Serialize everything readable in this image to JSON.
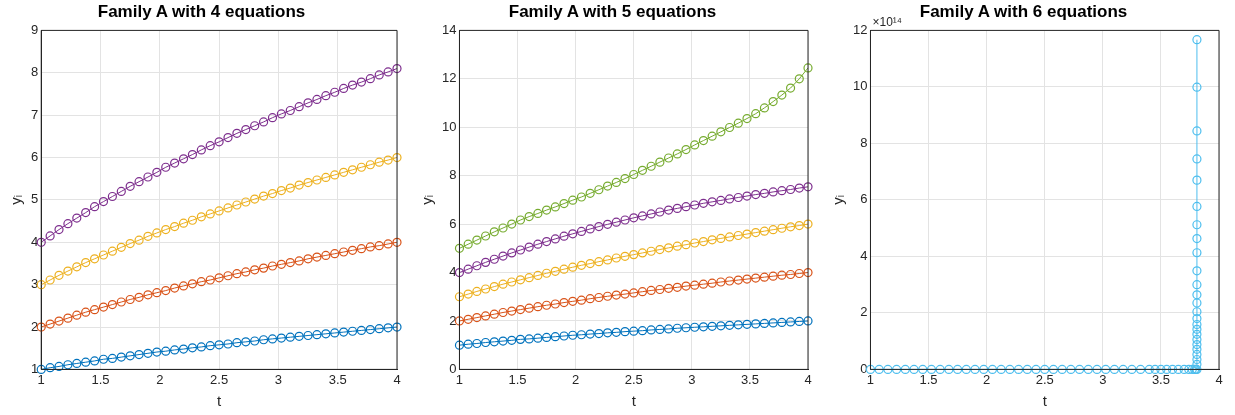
{
  "chart_data": [
    {
      "type": "line",
      "title": "Family A with 4 equations",
      "xlabel": "t",
      "ylabel": "yᵢ",
      "xlim": [
        1,
        4
      ],
      "xticks": [
        1,
        1.5,
        2,
        2.5,
        3,
        3.5,
        4
      ],
      "ylim": [
        1,
        9
      ],
      "yticks": [
        1,
        2,
        3,
        4,
        5,
        6,
        7,
        8,
        9
      ],
      "grid": true,
      "marker": "circle",
      "line_style": "solid",
      "x": [
        1,
        1.075,
        1.15,
        1.225,
        1.3,
        1.375,
        1.45,
        1.525,
        1.6,
        1.675,
        1.75,
        1.825,
        1.9,
        1.975,
        2.05,
        2.125,
        2.2,
        2.275,
        2.35,
        2.425,
        2.5,
        2.575,
        2.65,
        2.725,
        2.8,
        2.875,
        2.95,
        3.025,
        3.1,
        3.175,
        3.25,
        3.325,
        3.4,
        3.475,
        3.55,
        3.625,
        3.7,
        3.775,
        3.85,
        3.925,
        4
      ],
      "series": [
        {
          "color": "#0072bd",
          "values": [
            1.0,
            1.04,
            1.07,
            1.11,
            1.14,
            1.17,
            1.2,
            1.24,
            1.26,
            1.29,
            1.32,
            1.35,
            1.38,
            1.41,
            1.43,
            1.46,
            1.48,
            1.51,
            1.53,
            1.56,
            1.58,
            1.6,
            1.63,
            1.65,
            1.67,
            1.7,
            1.72,
            1.74,
            1.76,
            1.78,
            1.8,
            1.82,
            1.84,
            1.86,
            1.88,
            1.9,
            1.92,
            1.94,
            1.96,
            1.98,
            2.0
          ]
        },
        {
          "color": "#d95319",
          "values": [
            2.0,
            2.07,
            2.14,
            2.21,
            2.28,
            2.35,
            2.41,
            2.47,
            2.53,
            2.59,
            2.65,
            2.7,
            2.76,
            2.81,
            2.86,
            2.92,
            2.97,
            3.02,
            3.07,
            3.11,
            3.16,
            3.21,
            3.26,
            3.3,
            3.35,
            3.39,
            3.44,
            3.48,
            3.52,
            3.56,
            3.61,
            3.65,
            3.69,
            3.73,
            3.77,
            3.81,
            3.85,
            3.89,
            3.92,
            3.96,
            4.0
          ]
        },
        {
          "color": "#edb120",
          "values": [
            3.0,
            3.11,
            3.22,
            3.32,
            3.42,
            3.52,
            3.61,
            3.7,
            3.79,
            3.88,
            3.97,
            4.05,
            4.14,
            4.22,
            4.3,
            4.37,
            4.45,
            4.52,
            4.6,
            4.67,
            4.74,
            4.81,
            4.88,
            4.95,
            5.02,
            5.09,
            5.15,
            5.22,
            5.28,
            5.35,
            5.41,
            5.47,
            5.53,
            5.59,
            5.65,
            5.71,
            5.77,
            5.83,
            5.89,
            5.94,
            6.0
          ]
        },
        {
          "color": "#7e2f8e",
          "values": [
            4.0,
            4.15,
            4.3,
            4.44,
            4.57,
            4.7,
            4.84,
            4.96,
            5.08,
            5.2,
            5.32,
            5.43,
            5.54,
            5.65,
            5.77,
            5.87,
            5.97,
            6.07,
            6.18,
            6.28,
            6.37,
            6.47,
            6.57,
            6.66,
            6.75,
            6.84,
            6.94,
            7.03,
            7.11,
            7.2,
            7.29,
            7.37,
            7.46,
            7.54,
            7.63,
            7.71,
            7.78,
            7.86,
            7.95,
            8.02,
            8.1
          ]
        }
      ]
    },
    {
      "type": "line",
      "title": "Family A with 5 equations",
      "xlabel": "t",
      "ylabel": "yᵢ",
      "xlim": [
        1,
        4
      ],
      "xticks": [
        1,
        1.5,
        2,
        2.5,
        3,
        3.5,
        4
      ],
      "ylim": [
        0,
        14
      ],
      "yticks": [
        0,
        2,
        4,
        6,
        8,
        10,
        12,
        14
      ],
      "grid": true,
      "marker": "circle",
      "line_style": "solid",
      "x": [
        1,
        1.075,
        1.15,
        1.225,
        1.3,
        1.375,
        1.45,
        1.525,
        1.6,
        1.675,
        1.75,
        1.825,
        1.9,
        1.975,
        2.05,
        2.125,
        2.2,
        2.275,
        2.35,
        2.425,
        2.5,
        2.575,
        2.65,
        2.725,
        2.8,
        2.875,
        2.95,
        3.025,
        3.1,
        3.175,
        3.25,
        3.325,
        3.4,
        3.475,
        3.55,
        3.625,
        3.7,
        3.775,
        3.85,
        3.925,
        4
      ],
      "series": [
        {
          "color": "#0072bd",
          "values": [
            1.0,
            1.04,
            1.07,
            1.11,
            1.14,
            1.17,
            1.2,
            1.24,
            1.26,
            1.29,
            1.32,
            1.35,
            1.38,
            1.41,
            1.43,
            1.46,
            1.48,
            1.51,
            1.53,
            1.56,
            1.58,
            1.6,
            1.63,
            1.65,
            1.67,
            1.7,
            1.72,
            1.74,
            1.76,
            1.78,
            1.8,
            1.82,
            1.84,
            1.86,
            1.88,
            1.9,
            1.92,
            1.94,
            1.96,
            1.98,
            2.0
          ]
        },
        {
          "color": "#d95319",
          "values": [
            2.0,
            2.07,
            2.14,
            2.21,
            2.28,
            2.35,
            2.41,
            2.47,
            2.53,
            2.59,
            2.65,
            2.7,
            2.76,
            2.81,
            2.86,
            2.92,
            2.97,
            3.02,
            3.07,
            3.11,
            3.16,
            3.21,
            3.26,
            3.3,
            3.35,
            3.39,
            3.44,
            3.48,
            3.52,
            3.56,
            3.61,
            3.65,
            3.69,
            3.73,
            3.77,
            3.81,
            3.85,
            3.89,
            3.92,
            3.96,
            4.0
          ]
        },
        {
          "color": "#edb120",
          "values": [
            3.0,
            3.11,
            3.22,
            3.32,
            3.42,
            3.52,
            3.61,
            3.7,
            3.79,
            3.88,
            3.97,
            4.05,
            4.14,
            4.22,
            4.3,
            4.37,
            4.45,
            4.52,
            4.6,
            4.67,
            4.74,
            4.81,
            4.88,
            4.95,
            5.02,
            5.09,
            5.15,
            5.22,
            5.28,
            5.35,
            5.41,
            5.47,
            5.53,
            5.59,
            5.65,
            5.71,
            5.77,
            5.83,
            5.89,
            5.94,
            6.0
          ]
        },
        {
          "color": "#7e2f8e",
          "values": [
            4.0,
            4.14,
            4.28,
            4.42,
            4.55,
            4.68,
            4.81,
            4.93,
            5.05,
            5.17,
            5.28,
            5.39,
            5.5,
            5.6,
            5.7,
            5.8,
            5.9,
            5.99,
            6.08,
            6.17,
            6.26,
            6.34,
            6.42,
            6.5,
            6.58,
            6.65,
            6.72,
            6.79,
            6.86,
            6.92,
            6.98,
            7.04,
            7.1,
            7.16,
            7.22,
            7.27,
            7.33,
            7.38,
            7.43,
            7.49,
            7.54
          ]
        },
        {
          "color": "#77ac30",
          "values": [
            5.0,
            5.17,
            5.34,
            5.51,
            5.68,
            5.84,
            6.0,
            6.17,
            6.31,
            6.44,
            6.58,
            6.71,
            6.85,
            6.99,
            7.12,
            7.27,
            7.42,
            7.57,
            7.72,
            7.88,
            8.05,
            8.22,
            8.39,
            8.56,
            8.73,
            8.9,
            9.08,
            9.27,
            9.45,
            9.63,
            9.81,
            9.99,
            10.17,
            10.36,
            10.56,
            10.8,
            11.06,
            11.33,
            11.62,
            12.0,
            12.45
          ]
        }
      ]
    },
    {
      "type": "line",
      "title": "Family A with 6 equations",
      "xlabel": "t",
      "ylabel": "yᵢ",
      "annotations": [
        "×10¹⁴"
      ],
      "xlim": [
        1,
        4
      ],
      "xticks": [
        1,
        1.5,
        2,
        2.5,
        3,
        3.5,
        4
      ],
      "ylim": [
        0,
        12
      ],
      "yticks": [
        0,
        2,
        4,
        6,
        8,
        10,
        12
      ],
      "grid": true,
      "marker": "circle",
      "line_style": "solid",
      "series": [
        {
          "color": "#4dbeee",
          "x": [
            1,
            1.075,
            1.15,
            1.225,
            1.3,
            1.375,
            1.45,
            1.525,
            1.6,
            1.675,
            1.75,
            1.825,
            1.9,
            1.975,
            2.05,
            2.125,
            2.2,
            2.275,
            2.35,
            2.425,
            2.5,
            2.575,
            2.65,
            2.725,
            2.8,
            2.875,
            2.95,
            3.025,
            3.1,
            3.175,
            3.25,
            3.325,
            3.4,
            3.45,
            3.5,
            3.55,
            3.6,
            3.65,
            3.7,
            3.74,
            3.77,
            3.79,
            3.8,
            3.81,
            3.81,
            3.81,
            3.81,
            3.81,
            3.81,
            3.81,
            3.81,
            3.81,
            3.81,
            3.81,
            3.81,
            3.81,
            3.81,
            3.81,
            3.81,
            3.81,
            3.81,
            3.81,
            3.81,
            3.81,
            3.81,
            3.81,
            3.81,
            3.81
          ],
          "values": [
            0,
            0,
            0,
            0,
            0,
            0,
            0,
            0,
            0,
            0,
            0,
            0,
            0,
            0,
            0,
            0,
            0,
            0,
            0,
            0,
            0,
            0,
            0,
            0,
            0,
            0,
            0,
            0,
            0,
            0,
            0,
            0,
            0,
            0,
            0,
            0,
            0,
            0,
            0,
            0,
            0,
            0,
            0,
            0,
            0.18,
            0.35,
            0.53,
            0.71,
            0.88,
            1.06,
            1.24,
            1.42,
            1.59,
            1.8,
            2.04,
            2.35,
            2.64,
            3.0,
            3.49,
            4.13,
            4.63,
            5.12,
            5.77,
            6.7,
            7.45,
            8.44,
            9.99,
            11.67
          ]
        }
      ]
    }
  ]
}
